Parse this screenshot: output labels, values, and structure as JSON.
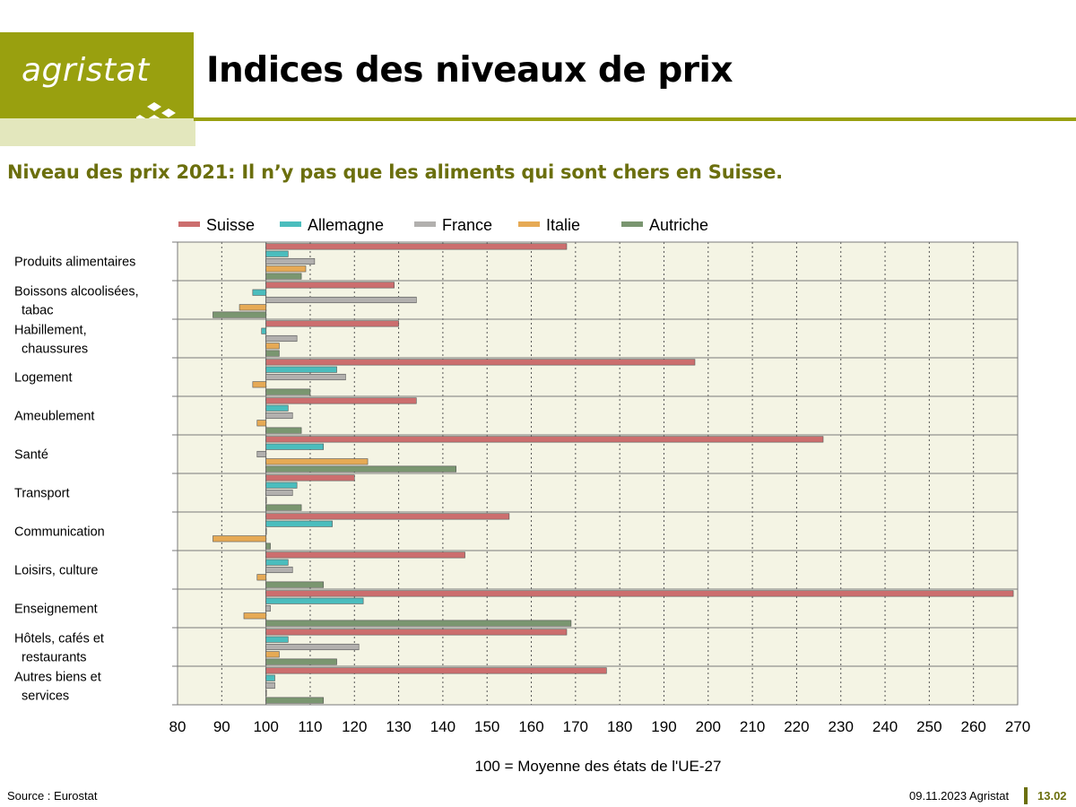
{
  "header": {
    "logo_text": "agristat",
    "title": "Indices des niveaux de prix",
    "subtitle": "Niveau des prix 2021: Il n’y pas que les aliments qui sont chers en Suisse."
  },
  "footer": {
    "source": "Source : Eurostat",
    "date": "09.11.2023 Agristat",
    "page": "13.02"
  },
  "colors": {
    "brand_green": "#99a00f",
    "plot_bg": "#f4f4e4"
  },
  "chart_data": {
    "type": "bar",
    "orientation": "horizontal",
    "title": "",
    "xlabel": "100 = Moyenne des états de l'UE-27",
    "ylabel": "",
    "baseline": 100,
    "xlim": [
      80,
      270
    ],
    "xticks": [
      80,
      90,
      100,
      110,
      120,
      130,
      140,
      150,
      160,
      170,
      180,
      190,
      200,
      210,
      220,
      230,
      240,
      250,
      260,
      270
    ],
    "grid": true,
    "legend_position": "top",
    "categories": [
      [
        "Produits alimentaires"
      ],
      [
        "Boissons alcoolisées,",
        "tabac"
      ],
      [
        "Habillement,",
        "chaussures"
      ],
      [
        "Logement"
      ],
      [
        "Ameublement"
      ],
      [
        "Santé"
      ],
      [
        "Transport"
      ],
      [
        "Communication"
      ],
      [
        "Loisirs, culture"
      ],
      [
        "Enseignement"
      ],
      [
        "Hôtels, cafés et",
        "restaurants"
      ],
      [
        "Autres biens et",
        "services"
      ]
    ],
    "series": [
      {
        "name": "Suisse",
        "color": "#cc6e6e",
        "values": [
          168,
          129,
          130,
          197,
          134,
          226,
          120,
          155,
          145,
          269,
          168,
          177
        ]
      },
      {
        "name": "Allemagne",
        "color": "#4bbdbd",
        "values": [
          105,
          97,
          99,
          116,
          105,
          113,
          107,
          115,
          105,
          122,
          105,
          102
        ]
      },
      {
        "name": "France",
        "color": "#b2b0ae",
        "values": [
          111,
          134,
          107,
          118,
          106,
          98,
          106,
          100,
          106,
          101,
          121,
          102
        ]
      },
      {
        "name": "Italie",
        "color": "#e6aa55",
        "values": [
          109,
          94,
          103,
          97,
          98,
          123,
          100,
          88,
          98,
          95,
          103,
          100
        ]
      },
      {
        "name": "Autriche",
        "color": "#7a9670",
        "values": [
          108,
          88,
          103,
          110,
          108,
          143,
          108,
          101,
          113,
          169,
          116,
          113
        ]
      }
    ]
  }
}
